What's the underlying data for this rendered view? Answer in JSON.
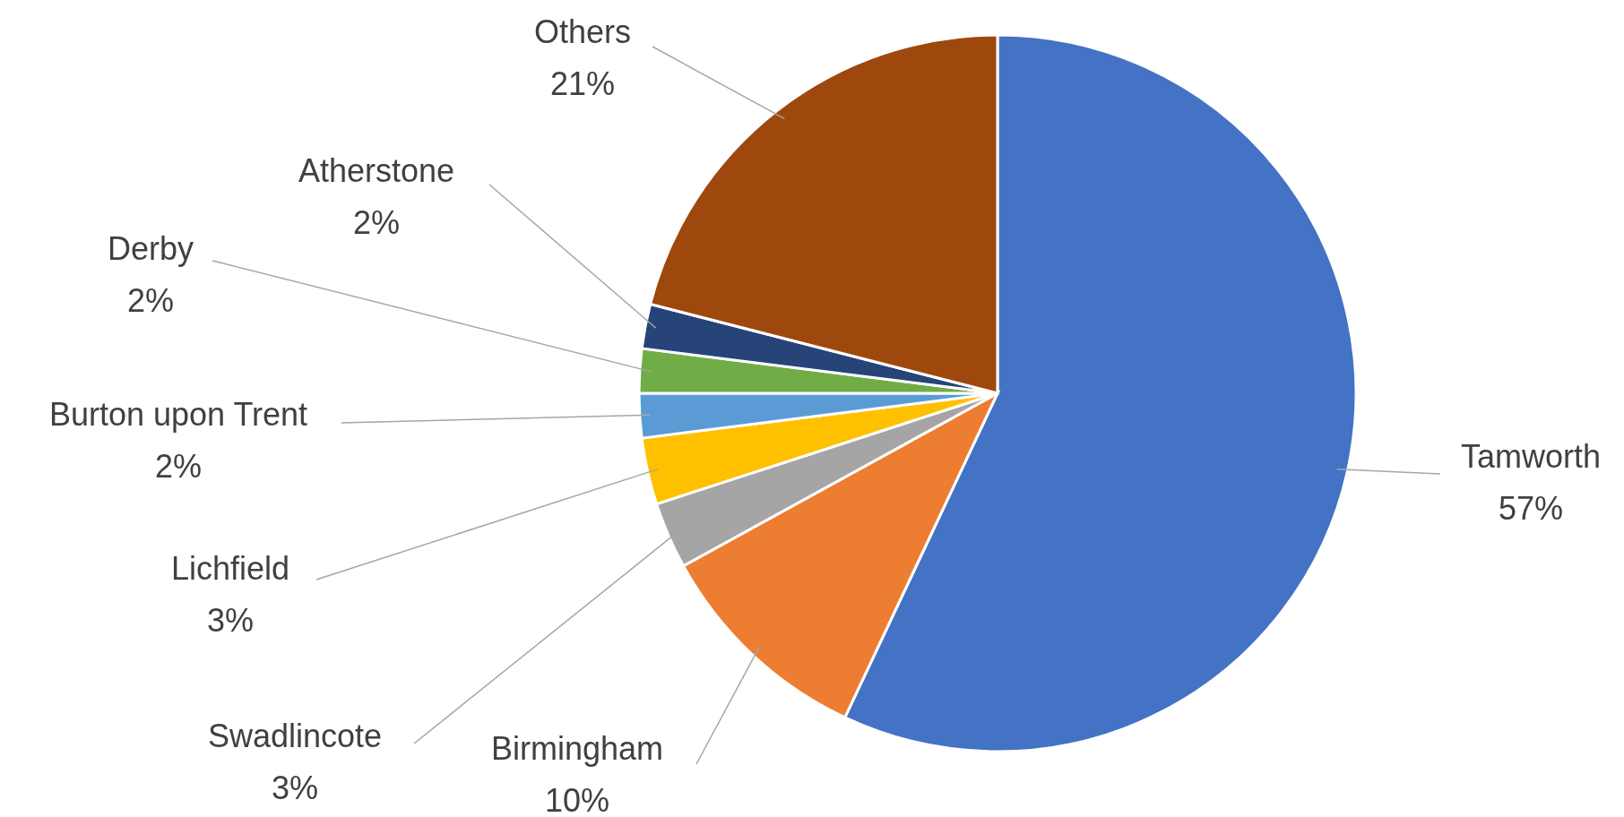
{
  "chart_data": {
    "type": "pie",
    "categories": [
      "Tamworth",
      "Birmingham",
      "Swadlincote",
      "Lichfield",
      "Burton upon Trent",
      "Derby",
      "Atherstone",
      "Others"
    ],
    "values": [
      57,
      10,
      3,
      3,
      2,
      2,
      2,
      21
    ],
    "colors": [
      "#4472c4",
      "#ed7d31",
      "#a5a5a5",
      "#ffc000",
      "#5b9bd5",
      "#70ad47",
      "#264478",
      "#9e480e"
    ],
    "value_labels": [
      "57%",
      "10%",
      "3%",
      "3%",
      "2%",
      "2%",
      "2%",
      "21%"
    ]
  }
}
